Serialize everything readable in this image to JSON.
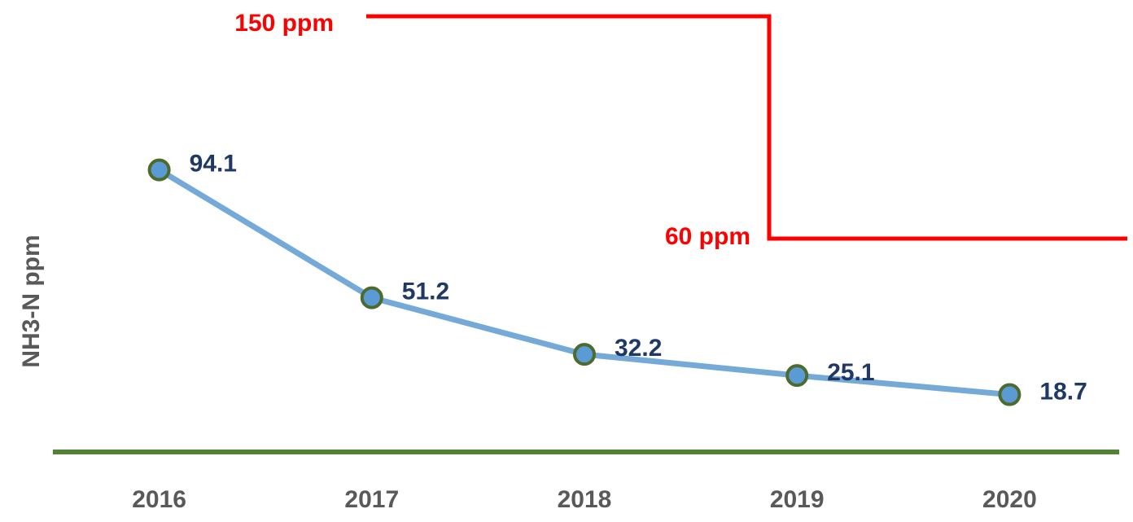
{
  "chart_data": {
    "type": "line",
    "y_label": "NH3-N ppm",
    "categories": [
      "2016",
      "2017",
      "2018",
      "2019",
      "2020"
    ],
    "values": [
      94.1,
      51.2,
      32.2,
      25.1,
      18.7
    ],
    "color": "#74a9d8",
    "marker_color": "#5b9bd5",
    "marker_edge_color": "#4e6b2e",
    "ylim": [
      0,
      150
    ],
    "annotations": [
      "150 ppm",
      "60 ppm"
    ],
    "annotation_color": "#ff0000"
  }
}
